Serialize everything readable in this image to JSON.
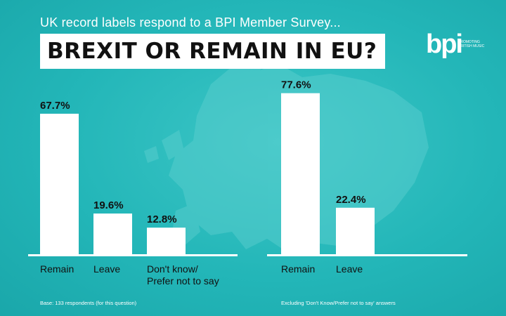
{
  "header": {
    "subtitle": "UK record labels respond to a BPI Member Survey...",
    "title": "BREXIT OR REMAIN IN EU?"
  },
  "logo": {
    "mark": "bpi",
    "tagline": "PROMOTING BRITISH MUSIC"
  },
  "colors": {
    "background": "#23b6b8",
    "bar": "#ffffff",
    "text": "#111111"
  },
  "chart_data": [
    {
      "type": "bar",
      "categories": [
        "Remain",
        "Leave",
        "Don't know/\nPrefer not to say"
      ],
      "values": [
        67.7,
        19.6,
        12.8
      ],
      "value_labels": [
        "67.7%",
        "19.6%",
        "12.8%"
      ],
      "ylim": [
        0,
        80
      ],
      "grid": false,
      "footnote": "Base: 133 respondents (for this question)"
    },
    {
      "type": "bar",
      "categories": [
        "Remain",
        "Leave"
      ],
      "values": [
        77.6,
        22.4
      ],
      "value_labels": [
        "77.6%",
        "22.4%"
      ],
      "ylim": [
        0,
        80
      ],
      "grid": false,
      "footnote": "Excluding 'Don't Know/Prefer not to say' answers"
    }
  ]
}
